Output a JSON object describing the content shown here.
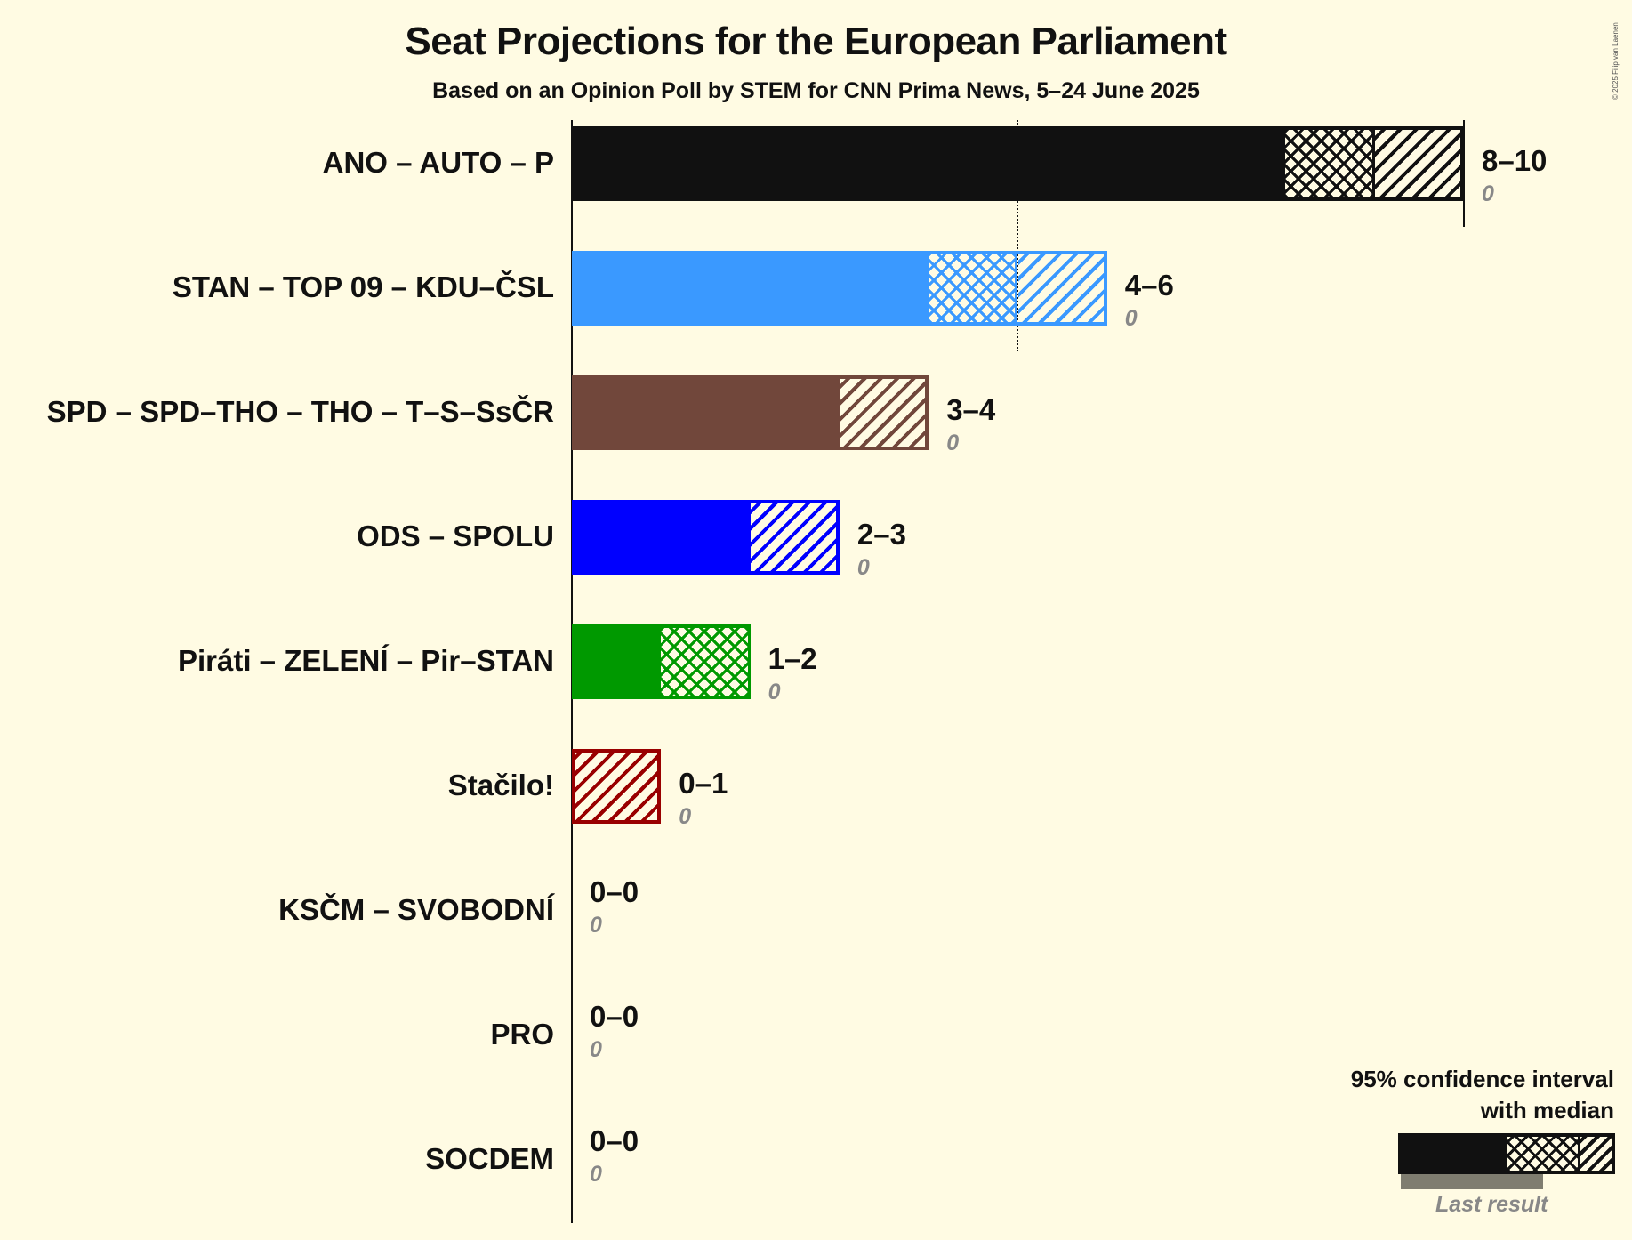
{
  "header": {
    "title": "Seat Projections for the European Parliament",
    "subtitle": "Based on an Opinion Poll by STEM for CNN Prima News, 5–24 June 2025",
    "copyright": "© 2025 Filip van Laenen"
  },
  "legend": {
    "line1": "95% confidence interval",
    "line2": "with median",
    "last_result": "Last result"
  },
  "parties": [
    {
      "name": "ANO – AUTO – P",
      "range": "8–10",
      "last": "0",
      "color": "#111111",
      "low": 8,
      "median": 9,
      "high": 10
    },
    {
      "name": "STAN – TOP 09 – KDU–ČSL",
      "range": "4–6",
      "last": "0",
      "color": "#3a99ff",
      "low": 4,
      "median": 5,
      "high": 6
    },
    {
      "name": "SPD – SPD–THO – THO – T–S–SsČR",
      "range": "3–4",
      "last": "0",
      "color": "#71473b",
      "low": 3,
      "median": 3,
      "high": 4
    },
    {
      "name": "ODS – SPOLU",
      "range": "2–3",
      "last": "0",
      "color": "#0000ff",
      "low": 2,
      "median": 2,
      "high": 3
    },
    {
      "name": "Piráti – ZELENÍ – Pir–STAN",
      "range": "1–2",
      "last": "0",
      "color": "#009900",
      "low": 1,
      "median": 2,
      "high": 2
    },
    {
      "name": "Stačilo!",
      "range": "0–1",
      "last": "0",
      "color": "#990000",
      "low": 0,
      "median": 0,
      "high": 1
    },
    {
      "name": "KSČM – SVOBODNÍ",
      "range": "0–0",
      "last": "0",
      "color": "#111111",
      "low": 0,
      "median": 0,
      "high": 0
    },
    {
      "name": "PRO",
      "range": "0–0",
      "last": "0",
      "color": "#111111",
      "low": 0,
      "median": 0,
      "high": 0
    },
    {
      "name": "SOCDEM",
      "range": "0–0",
      "last": "0",
      "color": "#111111",
      "low": 0,
      "median": 0,
      "high": 0
    }
  ],
  "chart_data": {
    "type": "bar",
    "orientation": "horizontal",
    "title": "Seat Projections for the European Parliament",
    "subtitle": "Based on an Opinion Poll by STEM for CNN Prima News, 5–24 June 2025",
    "categories": [
      "ANO – AUTO – P",
      "STAN – TOP 09 – KDU–ČSL",
      "SPD – SPD–THO – THO – T–S–SsČR",
      "ODS – SPOLU",
      "Piráti – ZELENÍ – Pir–STAN",
      "Stačilo!",
      "KSČM – SVOBODNÍ",
      "PRO",
      "SOCDEM"
    ],
    "series": [
      {
        "name": "CI low",
        "values": [
          8,
          4,
          3,
          2,
          1,
          0,
          0,
          0,
          0
        ]
      },
      {
        "name": "Median",
        "values": [
          9,
          5,
          3,
          2,
          2,
          0,
          0,
          0,
          0
        ]
      },
      {
        "name": "CI high",
        "values": [
          10,
          6,
          4,
          3,
          2,
          1,
          0,
          0,
          0
        ]
      },
      {
        "name": "Last result",
        "values": [
          0,
          0,
          0,
          0,
          0,
          0,
          0,
          0,
          0
        ]
      }
    ],
    "range_labels": [
      "8–10",
      "4–6",
      "3–4",
      "2–3",
      "1–2",
      "0–1",
      "0–0",
      "0–0",
      "0–0"
    ],
    "colors": [
      "#111111",
      "#3a99ff",
      "#71473b",
      "#0000ff",
      "#009900",
      "#990000",
      "#111111",
      "#111111",
      "#111111"
    ],
    "majority_line": 5,
    "xlim": [
      0,
      10
    ],
    "legend": [
      "95% confidence interval with median",
      "Last result"
    ],
    "legend_position": "bottom-right",
    "grid": false
  }
}
